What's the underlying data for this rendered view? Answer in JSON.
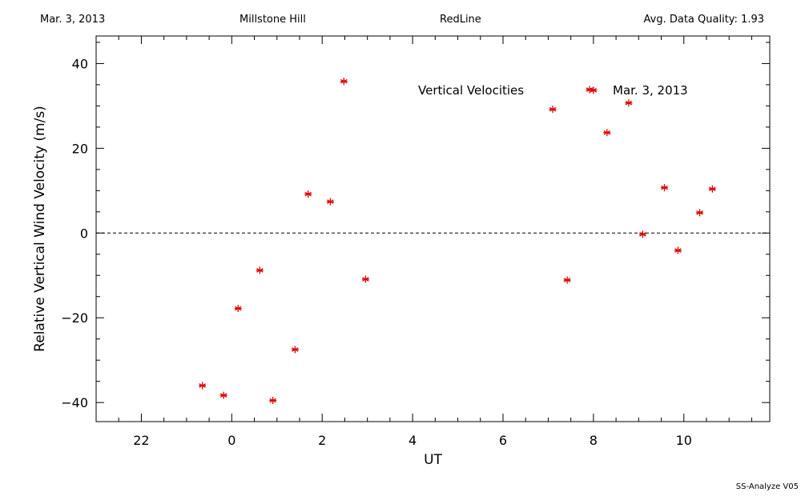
{
  "header": {
    "date": "Mar. 3, 2013",
    "site": "Millstone Hill",
    "filter": "RedLine",
    "quality": "Avg. Data Quality: 1.93"
  },
  "footer": {
    "software": "SS-Analyze V05"
  },
  "legend": {
    "label": "Vertical Velocities",
    "series_label": "Mar. 3, 2013"
  },
  "colors": {
    "points": "#dd0000",
    "axes": "#000000"
  },
  "chart_data": {
    "type": "scatter",
    "xlabel": "UT",
    "ylabel": "Relative Vertical Wind Velocity (m/s)",
    "xlim": [
      21.0,
      35.9
    ],
    "ylim": [
      -44.5,
      46.5
    ],
    "x_major_ticks": [
      22,
      24,
      26,
      28,
      30,
      32,
      34
    ],
    "x_tick_labels": [
      "22",
      "0",
      "2",
      "4",
      "6",
      "8",
      "10"
    ],
    "y_major_ticks": [
      -40,
      -20,
      0,
      20,
      40
    ],
    "y_tick_labels": [
      "−40",
      "−20",
      "0",
      "20",
      "40"
    ],
    "zero_line": true,
    "grid": false,
    "legend_position": "top-right",
    "series": [
      {
        "name": "Mar. 3, 2013",
        "marker": "asterisk",
        "x": [
          23.35,
          23.82,
          24.14,
          24.62,
          24.91,
          25.4,
          25.69,
          26.18,
          26.48,
          26.96,
          31.1,
          31.42,
          32.0,
          32.3,
          32.78,
          33.09,
          33.57,
          33.87,
          34.35,
          34.63
        ],
        "y": [
          -36.0,
          -38.3,
          -17.8,
          -8.8,
          -39.5,
          -27.5,
          9.2,
          7.4,
          35.8,
          -10.9,
          29.2,
          -11.1,
          33.7,
          23.7,
          30.7,
          -0.3,
          10.7,
          -4.1,
          4.8,
          10.4
        ]
      }
    ]
  }
}
